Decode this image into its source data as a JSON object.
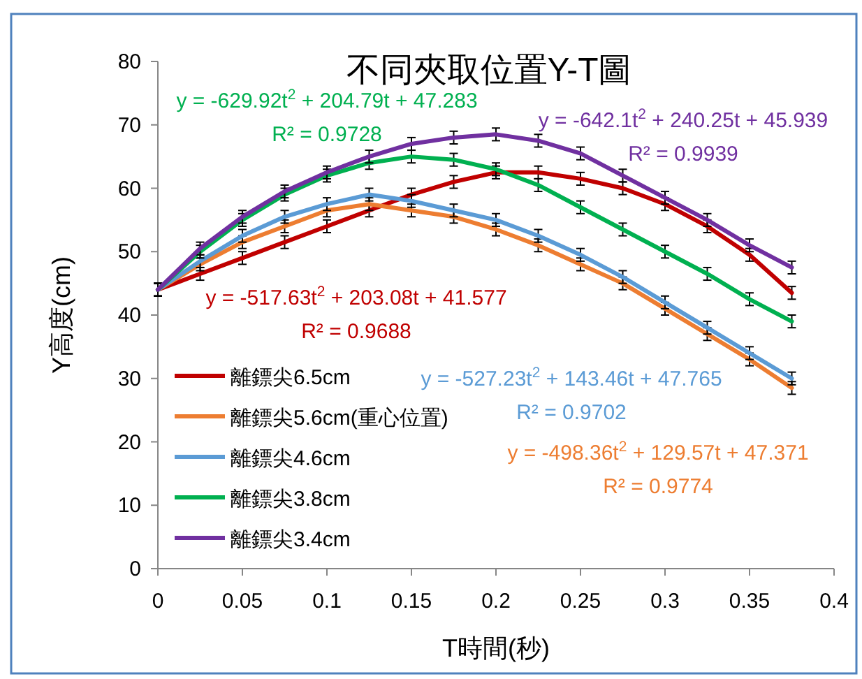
{
  "chart_data": {
    "type": "line",
    "title": "不同夾取位置Y-T圖",
    "xlabel": "T時間(秒)",
    "ylabel": "Y高度(cm)",
    "x": [
      0,
      0.025,
      0.05,
      0.075,
      0.1,
      0.125,
      0.15,
      0.175,
      0.2,
      0.225,
      0.25,
      0.275,
      0.3,
      0.325,
      0.35,
      0.375
    ],
    "series": [
      {
        "name": "離鏢尖6.5cm",
        "color": "#c00000",
        "values": [
          44,
          46.5,
          49,
          51.5,
          54,
          56.5,
          59,
          61,
          62.5,
          62.5,
          61.5,
          60,
          57.5,
          54,
          49.5,
          43.5
        ],
        "errors": [
          1,
          1,
          1,
          1,
          1,
          1,
          1,
          1,
          1,
          1,
          1,
          1,
          1,
          1,
          1,
          1
        ]
      },
      {
        "name": "離鏢尖5.6cm(重心位置)",
        "color": "#ed7d31",
        "values": [
          44,
          48,
          51.5,
          54,
          56.5,
          57.5,
          56.5,
          55.5,
          53.5,
          51,
          48,
          45,
          41,
          37,
          33,
          28.5
        ],
        "errors": [
          1,
          1,
          1,
          1,
          1,
          1,
          1,
          1,
          1,
          1,
          1,
          1,
          1,
          1,
          1,
          1
        ]
      },
      {
        "name": "離鏢尖4.6cm",
        "color": "#5b9bd5",
        "values": [
          44,
          48.5,
          52.5,
          55.5,
          57.5,
          59,
          58,
          56.5,
          55,
          52.5,
          49.5,
          46,
          42,
          38,
          34,
          30
        ],
        "errors": [
          1,
          1,
          1,
          1,
          1,
          1,
          1,
          1,
          1,
          1,
          1,
          1,
          1,
          1,
          1,
          1
        ]
      },
      {
        "name": "離鏢尖3.8cm",
        "color": "#00b050",
        "values": [
          44,
          50,
          55,
          59,
          62,
          64,
          65,
          64.5,
          63,
          60.5,
          57,
          53.5,
          50,
          46.5,
          42.5,
          39
        ],
        "errors": [
          1,
          1,
          1,
          1,
          1,
          1,
          1,
          1,
          1,
          1,
          1,
          1,
          1,
          1,
          1,
          1
        ]
      },
      {
        "name": "離鏢尖3.4cm",
        "color": "#7030a0",
        "values": [
          44,
          50.5,
          55.5,
          59.5,
          62.5,
          65,
          67,
          68,
          68.5,
          67.5,
          65.5,
          62,
          58.5,
          55,
          51,
          47.5
        ],
        "errors": [
          1,
          1,
          1,
          1,
          1,
          1,
          1,
          1,
          1,
          1,
          1,
          1,
          1,
          1,
          1,
          1
        ]
      }
    ],
    "annotations": [
      "y = -629.92t$^{2}$ + 204.79t + 47.283",
      "R² = 0.9728",
      "y = -642.1t$^{2}$ + 240.25t + 45.939",
      "R² = 0.9939",
      "y = -517.63t$^{2}$ + 203.08t + 41.577",
      "R² = 0.9688",
      "y = -527.23t$^{2}$ + 143.46t + 47.765",
      "R² = 0.9702",
      "y = -498.36t$^{2}$ + 129.57t + 47.371",
      "R² = 0.9774"
    ],
    "xlim": [
      0,
      0.4
    ],
    "ylim": [
      0,
      80
    ],
    "xticks": [
      {
        "value": 0,
        "label": "0"
      },
      0.05,
      0.1,
      0.15,
      0.2,
      0.25,
      0.3,
      0.35,
      0.4
    ],
    "yticks": [
      0,
      10,
      20,
      30,
      40,
      50,
      60,
      70,
      80
    ],
    "legend": "left",
    "grid": false,
    "marker": "none",
    "line_style": "solid"
  }
}
